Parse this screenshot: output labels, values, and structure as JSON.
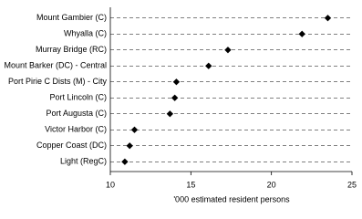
{
  "chart_data": {
    "type": "dot",
    "x_label": "'000 estimated resident persons",
    "categories": [
      "Mount Gambier (C)",
      "Whyalla (C)",
      "Murray Bridge (RC)",
      "Mount Barker (DC) - Central",
      "Port Pirie C Dists (M) - City",
      "Port Lincoln (C)",
      "Port Augusta (C)",
      "Victor Harbor (C)",
      "Copper Coast (DC)",
      "Light (RegC)"
    ],
    "values": [
      23.5,
      21.9,
      17.3,
      16.1,
      14.1,
      14.0,
      13.7,
      11.5,
      11.2,
      10.9
    ],
    "color": "#000000",
    "xlim": [
      10,
      25
    ],
    "xticks": [
      10,
      15,
      20,
      25
    ]
  }
}
